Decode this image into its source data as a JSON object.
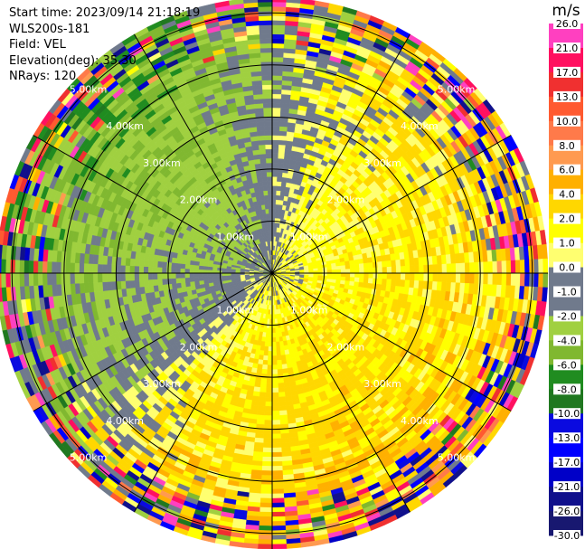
{
  "info": {
    "start_time": "Start time: 2023/09/14 21:18:19",
    "instrument": "WLS200s-181",
    "field": "Field: VEL",
    "elevation": "Elevation(deg): 35.30",
    "nrays": "NRays: 120"
  },
  "chart_data": {
    "type": "heatmap",
    "projection": "polar-ppi",
    "field": "VEL",
    "units": "m/s",
    "n_rays": 120,
    "elevation_deg": 35.3,
    "range_rings": {
      "distances_km": [
        1,
        2,
        3,
        4,
        5
      ],
      "labels": [
        "1.00km",
        "2.00km",
        "3.00km",
        "4.00km",
        "5.00km"
      ]
    },
    "max_range_km": 5.3,
    "spokes_deg": [
      0,
      30,
      60,
      90,
      120,
      150,
      180,
      210,
      240,
      270,
      300,
      330
    ],
    "colorbar": {
      "title": "m/s",
      "tick_labels": [
        "26.0",
        "21.0",
        "17.0",
        "13.0",
        "10.0",
        "8.0",
        "6.0",
        "4.0",
        "2.0",
        "1.0",
        "0.0",
        "-1.0",
        "-2.0",
        "-4.0",
        "-6.0",
        "-8.0",
        "-10.0",
        "-13.0",
        "-17.0",
        "-21.0",
        "-26.0",
        "-30.0"
      ],
      "colors": [
        "#ff40c0",
        "#ff1060",
        "#f03030",
        "#ff5a30",
        "#ff7a4a",
        "#ff9a50",
        "#ffb000",
        "#ffd700",
        "#ffff00",
        "#ffff70",
        "#707a8c",
        "#707a8c",
        "#a0d040",
        "#80b830",
        "#208c20",
        "#207820",
        "#0a0ae0",
        "#0000ff",
        "#0000c8",
        "#10108c",
        "#181870"
      ]
    },
    "velocity_pattern": {
      "description_sectors": [
        {
          "azimuth_deg": 330,
          "value": -4.0
        },
        {
          "azimuth_deg": 30,
          "value": 1.5
        },
        {
          "azimuth_deg": 90,
          "value": 2.0
        },
        {
          "azimuth_deg": 150,
          "value": 3.0
        },
        {
          "azimuth_deg": 180,
          "value": 2.5
        },
        {
          "azimuth_deg": 210,
          "value": 2.0
        },
        {
          "azimuth_deg": 240,
          "value": -2.0
        },
        {
          "azimuth_deg": 270,
          "value": -3.0
        },
        {
          "azimuth_deg": 300,
          "value": -4.0
        }
      ]
    }
  }
}
